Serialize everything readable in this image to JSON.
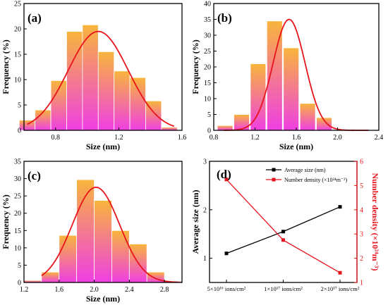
{
  "chart_data": [
    {
      "type": "bar",
      "panel_label": "(a)",
      "xlabel": "Size (nm)",
      "ylabel": "Frequency (%)",
      "xlim": [
        0.6,
        1.6
      ],
      "ylim": [
        0,
        25
      ],
      "xticks": [
        "0.8",
        "1.2",
        "1.6"
      ],
      "xtick_values": [
        0.8,
        1.2,
        1.6
      ],
      "yticks": [
        "0",
        "5",
        "10",
        "15",
        "20",
        "25"
      ],
      "ytick_values": [
        0,
        5,
        10,
        15,
        20,
        25
      ],
      "bin_width": 0.1,
      "bins": [
        0.62,
        0.72,
        0.82,
        0.92,
        1.02,
        1.12,
        1.22,
        1.32,
        1.42,
        1.52
      ],
      "values": [
        2.0,
        4.0,
        9.8,
        19.5,
        20.8,
        15.5,
        11.7,
        10.4,
        5.8,
        0.6
      ],
      "fit": {
        "type": "gaussian",
        "center": 1.07,
        "sigma": 0.19,
        "amplitude": 19.5,
        "from": 0.62,
        "to": 1.55
      }
    },
    {
      "type": "bar",
      "panel_label": "(b)",
      "xlabel": "Size (nm)",
      "ylabel": "Frequency (%)",
      "xlim": [
        0.8,
        2.4
      ],
      "ylim": [
        0,
        40
      ],
      "xticks": [
        "0.8",
        "1.2",
        "1.6",
        "2.0",
        "2.4"
      ],
      "xtick_values": [
        0.8,
        1.2,
        1.6,
        2.0,
        2.4
      ],
      "yticks": [
        "0",
        "5",
        "10",
        "15",
        "20",
        "25",
        "30",
        "35",
        "40"
      ],
      "ytick_values": [
        0,
        5,
        10,
        15,
        20,
        25,
        30,
        35,
        40
      ],
      "bin_width": 0.15,
      "bins": [
        0.91,
        1.07,
        1.23,
        1.39,
        1.55,
        1.71,
        1.87,
        2.03,
        2.19
      ],
      "values": [
        1.5,
        5.0,
        21.0,
        34.5,
        26.0,
        8.5,
        4.0,
        0.0,
        0.0
      ],
      "fit": {
        "type": "gaussian",
        "center": 1.53,
        "sigma": 0.155,
        "amplitude": 35.0,
        "from": 0.9,
        "to": 2.3
      }
    },
    {
      "type": "bar",
      "panel_label": "(c)",
      "xlabel": "Size (nm)",
      "ylabel": "Frequency (%)",
      "xlim": [
        1.2,
        3.0
      ],
      "ylim": [
        0,
        35
      ],
      "xticks": [
        "1.2",
        "1.6",
        "2.0",
        "2.4",
        "2.8"
      ],
      "xtick_values": [
        1.2,
        1.6,
        2.0,
        2.4,
        2.8
      ],
      "yticks": [
        "0",
        "5",
        "10",
        "15",
        "20",
        "25",
        "30",
        "35"
      ],
      "ytick_values": [
        0,
        5,
        10,
        15,
        20,
        25,
        30,
        35
      ],
      "bin_width": 0.2,
      "bins": [
        1.3,
        1.5,
        1.7,
        1.9,
        2.1,
        2.3,
        2.5,
        2.7,
        2.9
      ],
      "values": [
        0.6,
        3.0,
        13.6,
        29.7,
        23.7,
        15.0,
        11.1,
        3.0,
        0.4
      ],
      "fit": {
        "type": "gaussian",
        "center": 2.02,
        "sigma": 0.27,
        "amplitude": 27.5,
        "from": 1.4,
        "to": 2.95
      }
    },
    {
      "type": "line",
      "panel_label": "(d)",
      "categories": [
        "5×10¹⁶ ions/cm²",
        "1×10¹⁷ ions/cm²",
        "2×10¹⁷ ions/cm²"
      ],
      "ylabel": "Average size (nm)",
      "y2label": "Number density (×10²⁴m⁻³)",
      "ylim": [
        0.5,
        3
      ],
      "y2lim": [
        1,
        6
      ],
      "yticks": [
        "1",
        "2",
        "3"
      ],
      "ytick_values": [
        1,
        2,
        3
      ],
      "y2ticks": [
        "1",
        "2",
        "3",
        "4",
        "5",
        "6"
      ],
      "y2tick_values": [
        1,
        2,
        3,
        4,
        5,
        6
      ],
      "legend_position": "top-right",
      "series": [
        {
          "name": "Average size (nm)",
          "axis": "left",
          "color": "#000000",
          "values": [
            1.1,
            1.55,
            2.06
          ]
        },
        {
          "name": "Number density (×10²⁴m⁻³)",
          "axis": "right",
          "color": "#e8141b",
          "values": [
            5.25,
            2.75,
            1.4
          ]
        }
      ]
    }
  ],
  "colors": {
    "bar_top": "#f8b53c",
    "bar_bottom": "#ef3fe3",
    "fit_line": "#e8141b",
    "bar_edge": "#ffffff"
  }
}
